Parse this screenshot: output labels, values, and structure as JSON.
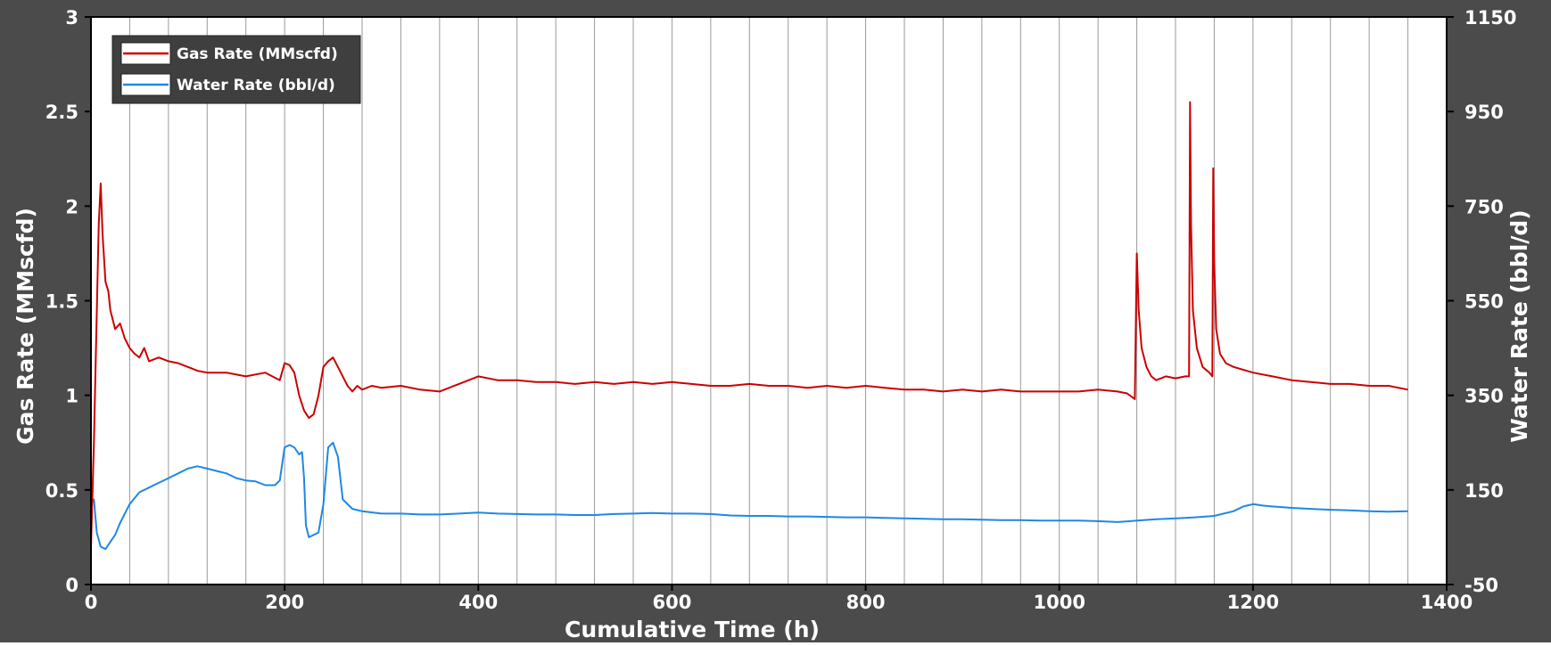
{
  "colors": {
    "frame": "#4b4b4b",
    "plot_bg": "#ffffff",
    "grid": "#9a9a9a",
    "gas": "#cc0000",
    "water": "#1e88e5",
    "text": "#ffffff"
  },
  "chart_data": {
    "type": "line",
    "xlabel": "Cumulative Time (h)",
    "ylabel": "Gas Rate (MMscfd)",
    "y2label": "Water Rate (bbl/d)",
    "xlim": [
      0,
      1400
    ],
    "ylim": [
      0,
      3
    ],
    "y2lim": [
      -50,
      1150
    ],
    "xticks": [
      "0",
      "200",
      "400",
      "600",
      "800",
      "1000",
      "1200",
      "1400"
    ],
    "yticks": [
      "0",
      "0.5",
      "1",
      "1.5",
      "2",
      "2.5",
      "3"
    ],
    "y2ticks": [
      "-50",
      "150",
      "350",
      "550",
      "750",
      "950",
      "1150"
    ],
    "grid": "vertical lines every 40 h",
    "legend_position": "top-left",
    "series": [
      {
        "name": "Gas Rate (MMscfd)",
        "axis": "left",
        "x": [
          0,
          3,
          5,
          8,
          10,
          12,
          15,
          18,
          20,
          25,
          30,
          35,
          40,
          45,
          50,
          55,
          60,
          70,
          80,
          90,
          100,
          110,
          120,
          140,
          160,
          180,
          195,
          200,
          205,
          210,
          215,
          220,
          225,
          230,
          235,
          240,
          245,
          250,
          255,
          260,
          265,
          270,
          275,
          280,
          290,
          300,
          320,
          340,
          360,
          380,
          400,
          420,
          440,
          460,
          480,
          500,
          520,
          540,
          560,
          580,
          600,
          620,
          640,
          660,
          680,
          700,
          720,
          740,
          760,
          780,
          800,
          820,
          840,
          860,
          880,
          900,
          920,
          940,
          960,
          980,
          1000,
          1020,
          1040,
          1060,
          1070,
          1078,
          1080,
          1082,
          1085,
          1090,
          1095,
          1100,
          1110,
          1120,
          1130,
          1134,
          1135,
          1136,
          1138,
          1142,
          1148,
          1155,
          1158,
          1159,
          1160,
          1162,
          1166,
          1172,
          1180,
          1200,
          1220,
          1240,
          1260,
          1280,
          1300,
          1320,
          1340,
          1360
        ],
        "values": [
          0.2,
          0.75,
          1.2,
          1.9,
          2.12,
          1.85,
          1.6,
          1.55,
          1.45,
          1.35,
          1.38,
          1.3,
          1.25,
          1.22,
          1.2,
          1.25,
          1.18,
          1.2,
          1.18,
          1.17,
          1.15,
          1.13,
          1.12,
          1.12,
          1.1,
          1.12,
          1.08,
          1.17,
          1.16,
          1.12,
          1.0,
          0.92,
          0.88,
          0.9,
          1.0,
          1.15,
          1.18,
          1.2,
          1.15,
          1.1,
          1.05,
          1.02,
          1.05,
          1.03,
          1.05,
          1.04,
          1.05,
          1.03,
          1.02,
          1.06,
          1.1,
          1.08,
          1.08,
          1.07,
          1.07,
          1.06,
          1.07,
          1.06,
          1.07,
          1.06,
          1.07,
          1.06,
          1.05,
          1.05,
          1.06,
          1.05,
          1.05,
          1.04,
          1.05,
          1.04,
          1.05,
          1.04,
          1.03,
          1.03,
          1.02,
          1.03,
          1.02,
          1.03,
          1.02,
          1.02,
          1.02,
          1.02,
          1.03,
          1.02,
          1.01,
          0.98,
          1.75,
          1.45,
          1.25,
          1.15,
          1.1,
          1.08,
          1.1,
          1.09,
          1.1,
          1.1,
          2.55,
          1.9,
          1.45,
          1.25,
          1.15,
          1.12,
          1.1,
          2.2,
          1.7,
          1.35,
          1.22,
          1.17,
          1.15,
          1.12,
          1.1,
          1.08,
          1.07,
          1.06,
          1.06,
          1.05,
          1.05,
          1.03
        ]
      },
      {
        "name": "Water Rate (bbl/d)",
        "axis": "right",
        "x": [
          0,
          3,
          6,
          10,
          15,
          20,
          25,
          30,
          40,
          50,
          60,
          70,
          80,
          90,
          100,
          110,
          120,
          130,
          140,
          150,
          160,
          170,
          180,
          190,
          195,
          200,
          205,
          210,
          215,
          218,
          220,
          222,
          225,
          230,
          235,
          240,
          245,
          250,
          255,
          260,
          270,
          280,
          300,
          320,
          340,
          360,
          380,
          400,
          420,
          440,
          460,
          480,
          500,
          520,
          540,
          560,
          580,
          600,
          620,
          640,
          660,
          680,
          700,
          720,
          740,
          760,
          780,
          800,
          820,
          840,
          860,
          880,
          900,
          920,
          940,
          960,
          980,
          1000,
          1020,
          1040,
          1060,
          1080,
          1100,
          1120,
          1140,
          1160,
          1180,
          1190,
          1200,
          1210,
          1220,
          1240,
          1260,
          1280,
          1300,
          1320,
          1340,
          1360
        ],
        "values": [
          120,
          130,
          60,
          30,
          25,
          40,
          55,
          80,
          120,
          145,
          155,
          165,
          175,
          185,
          195,
          200,
          195,
          190,
          185,
          175,
          170,
          168,
          160,
          160,
          170,
          240,
          245,
          240,
          225,
          230,
          175,
          75,
          50,
          55,
          60,
          120,
          240,
          250,
          220,
          130,
          110,
          105,
          100,
          100,
          98,
          98,
          100,
          102,
          100,
          99,
          98,
          98,
          97,
          97,
          99,
          100,
          101,
          100,
          100,
          99,
          96,
          95,
          95,
          94,
          94,
          93,
          92,
          92,
          91,
          90,
          89,
          88,
          88,
          87,
          86,
          86,
          85,
          85,
          85,
          84,
          82,
          85,
          88,
          90,
          92,
          95,
          105,
          115,
          120,
          117,
          115,
          112,
          110,
          108,
          107,
          105,
          104,
          105
        ]
      }
    ]
  }
}
